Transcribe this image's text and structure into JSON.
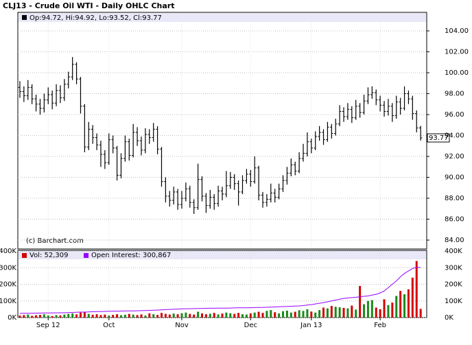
{
  "chart_data": {
    "type": "ohlc",
    "title": "CLJ13 - Crude Oil WTI - Daily OHLC Chart",
    "legend_text": "Op:94.72, Hi:94.92, Lo:93.52, Cl:93.77",
    "watermark": "(c) Barchart.com",
    "color": "#000000",
    "open": [
      98.6,
      98.2,
      97.8,
      98.6,
      97.5,
      97.0,
      96.6,
      97.4,
      97.9,
      97.1,
      98.3,
      97.6,
      98.9,
      99.6,
      100.8,
      99.4,
      96.8,
      92.9,
      94.6,
      93.8,
      93.1,
      92.2,
      91.4,
      93.6,
      92.8,
      90.2,
      91.8,
      93.4,
      92.1,
      94.3,
      93.5,
      92.6,
      94.1,
      93.8,
      94.6,
      92.7,
      89.6,
      88.2,
      87.8,
      88.6,
      87.4,
      88.0,
      88.9,
      87.6,
      87.1,
      89.8,
      88.2,
      87.3,
      88.1,
      87.5,
      88.7,
      88.4,
      89.2,
      90.0,
      89.4,
      88.6,
      89.7,
      90.3,
      89.6,
      90.9,
      88.3,
      87.6,
      87.9,
      88.5,
      88.1,
      88.9,
      89.7,
      90.4,
      91.2,
      90.6,
      91.8,
      92.3,
      93.4,
      92.8,
      93.9,
      94.3,
      93.6,
      94.8,
      94.2,
      95.1,
      96.3,
      95.8,
      96.5,
      95.7,
      96.8,
      96.2,
      97.3,
      97.9,
      98.1,
      97.4,
      96.9,
      96.3,
      96.8,
      95.9,
      97.2,
      96.6,
      98.0,
      97.5,
      96.1,
      94.72
    ],
    "high": [
      99.2,
      98.7,
      99.3,
      98.9,
      97.9,
      97.5,
      98.0,
      98.6,
      98.3,
      98.9,
      98.8,
      99.4,
      100.1,
      101.5,
      101.0,
      99.6,
      97.0,
      95.3,
      95.0,
      94.2,
      93.5,
      92.6,
      94.2,
      94.0,
      93.0,
      92.3,
      94.0,
      93.7,
      95.1,
      94.8,
      93.9,
      94.7,
      94.6,
      95.2,
      94.9,
      92.9,
      90.0,
      88.7,
      89.1,
      88.9,
      88.7,
      89.5,
      89.2,
      87.9,
      91.3,
      90.1,
      88.5,
      88.8,
      88.4,
      89.2,
      89.1,
      90.6,
      90.5,
      90.3,
      89.7,
      90.2,
      90.8,
      90.7,
      92.0,
      91.1,
      88.6,
      88.4,
      89.4,
      88.9,
      89.4,
      90.2,
      91.0,
      91.8,
      91.5,
      92.4,
      93.2,
      94.3,
      93.7,
      94.4,
      94.9,
      94.6,
      95.3,
      95.1,
      95.6,
      96.9,
      96.7,
      97.1,
      96.8,
      97.4,
      97.1,
      97.9,
      98.6,
      98.7,
      98.4,
      97.8,
      97.3,
      97.5,
      97.1,
      97.8,
      97.6,
      98.7,
      98.3,
      97.8,
      96.4,
      94.92
    ],
    "low": [
      97.6,
      97.2,
      97.4,
      97.0,
      96.3,
      96.0,
      96.2,
      97.0,
      96.5,
      96.8,
      97.1,
      97.3,
      98.5,
      99.3,
      98.9,
      96.1,
      92.4,
      92.6,
      93.2,
      92.6,
      91.0,
      90.8,
      91.2,
      92.3,
      89.7,
      89.9,
      91.5,
      91.6,
      91.9,
      93.0,
      92.1,
      92.3,
      93.2,
      93.4,
      92.2,
      89.1,
      87.6,
      87.2,
      87.4,
      86.9,
      87.0,
      87.7,
      87.1,
      86.5,
      86.9,
      87.7,
      86.6,
      87.0,
      86.9,
      87.2,
      87.8,
      88.1,
      88.9,
      88.8,
      87.3,
      88.4,
      89.4,
      89.1,
      89.4,
      87.8,
      87.1,
      87.2,
      87.6,
      87.6,
      87.9,
      88.6,
      89.3,
      90.1,
      90.2,
      90.4,
      91.5,
      92.0,
      92.3,
      92.6,
      93.5,
      93.1,
      93.4,
      93.7,
      94.0,
      94.9,
      95.3,
      95.5,
      95.2,
      95.5,
      95.7,
      96.0,
      97.0,
      97.5,
      96.9,
      96.3,
      95.8,
      95.9,
      95.3,
      95.6,
      96.0,
      96.4,
      97.0,
      95.5,
      94.3,
      93.52
    ],
    "close": [
      98.2,
      97.8,
      98.6,
      97.5,
      97.0,
      96.6,
      97.4,
      97.9,
      97.1,
      98.3,
      97.6,
      98.9,
      99.6,
      100.8,
      99.4,
      96.8,
      92.9,
      94.6,
      93.8,
      93.1,
      92.2,
      91.4,
      93.6,
      92.8,
      90.2,
      91.8,
      93.4,
      92.1,
      94.3,
      93.5,
      92.6,
      94.1,
      93.8,
      94.6,
      92.7,
      89.6,
      88.2,
      87.8,
      88.6,
      87.4,
      88.0,
      88.9,
      87.6,
      87.1,
      89.8,
      88.2,
      87.3,
      88.1,
      87.5,
      88.7,
      88.4,
      89.2,
      90.0,
      89.4,
      88.6,
      89.7,
      90.3,
      89.6,
      90.9,
      88.3,
      87.6,
      87.9,
      88.5,
      88.1,
      88.9,
      89.7,
      90.4,
      91.2,
      90.6,
      91.8,
      92.3,
      93.4,
      92.8,
      93.9,
      94.3,
      93.6,
      94.8,
      94.2,
      95.1,
      96.3,
      95.8,
      96.5,
      95.7,
      96.8,
      96.2,
      97.3,
      97.9,
      98.1,
      97.4,
      96.9,
      96.3,
      96.8,
      95.9,
      97.2,
      96.6,
      98.0,
      97.5,
      96.1,
      94.72,
      93.77
    ],
    "xlim": [
      -0.5,
      100.5
    ],
    "xticks": [
      {
        "value": 7,
        "label": "Sep 12"
      },
      {
        "value": 22,
        "label": "Oct"
      },
      {
        "value": 40,
        "label": "Nov"
      },
      {
        "value": 57,
        "label": "Dec"
      },
      {
        "value": 72,
        "label": "Jan 13"
      },
      {
        "value": 89,
        "label": "Feb"
      }
    ],
    "ylim": [
      83.15,
      104.79
    ],
    "yticks": [
      {
        "value": 84,
        "label": "84.00"
      },
      {
        "value": 86,
        "label": "86.00"
      },
      {
        "value": 88,
        "label": "88.00"
      },
      {
        "value": 90,
        "label": "90.00"
      },
      {
        "value": 92,
        "label": "92.00"
      },
      {
        "value": 94,
        "label": "94.00"
      },
      {
        "value": 96,
        "label": "96.00"
      },
      {
        "value": 98,
        "label": "98.00"
      },
      {
        "value": 100,
        "label": "100.00"
      },
      {
        "value": 102,
        "label": "102.00"
      },
      {
        "value": 104,
        "label": "104.00"
      }
    ],
    "grid": true,
    "volume": {
      "legend": "Vol: 52,309",
      "up_color": "#1a8a1a",
      "down_color": "#d40000",
      "values": [
        12000,
        15000,
        18000,
        10000,
        14000,
        16000,
        20000,
        12000,
        9000,
        15000,
        13000,
        18000,
        22000,
        25000,
        19000,
        30000,
        35000,
        22000,
        17000,
        20000,
        15000,
        18000,
        12000,
        16000,
        20000,
        14000,
        17000,
        22000,
        18000,
        15000,
        19000,
        12000,
        25000,
        20000,
        16000,
        28000,
        22000,
        18000,
        24000,
        20000,
        26000,
        30000,
        22000,
        18000,
        35000,
        25000,
        20000,
        23000,
        28000,
        19000,
        24000,
        30000,
        26000,
        22000,
        28000,
        20000,
        18000,
        25000,
        30000,
        35000,
        28000,
        40000,
        45000,
        32000,
        25000,
        38000,
        42000,
        30000,
        35000,
        44000,
        40000,
        50000,
        36000,
        30000,
        45000,
        60000,
        55000,
        70000,
        65000,
        62000,
        58000,
        55000,
        72000,
        48000,
        190000,
        80000,
        100000,
        105000,
        60000,
        50000,
        110000,
        75000,
        90000,
        130000,
        160000,
        140000,
        170000,
        240000,
        340000,
        52309
      ],
      "ylim": [
        0,
        400000
      ],
      "yticks": [
        {
          "value": 0,
          "label": "0K"
        },
        {
          "value": 100000,
          "label": "100K"
        },
        {
          "value": 200000,
          "label": "200K"
        },
        {
          "value": 300000,
          "label": "300K"
        },
        {
          "value": 400000,
          "label": "400K"
        }
      ]
    },
    "open_interest": {
      "legend": "Open Interest: 300,867",
      "color": "#9900ff",
      "values": [
        25000,
        25500,
        26000,
        26000,
        27000,
        27000,
        27500,
        28000,
        28000,
        28500,
        29000,
        29000,
        30000,
        31000,
        32000,
        33000,
        33000,
        34000,
        35000,
        36000,
        36000,
        37000,
        37500,
        38000,
        38500,
        39000,
        39500,
        40000,
        40500,
        41000,
        41500,
        42000,
        43000,
        44000,
        45000,
        46000,
        48000,
        49000,
        50000,
        51000,
        52000,
        53000,
        53000,
        54000,
        54500,
        55000,
        55500,
        56000,
        56000,
        56500,
        57000,
        57000,
        57500,
        58000,
        58500,
        59000,
        59000,
        59500,
        60000,
        60500,
        61000,
        62000,
        63000,
        64000,
        65000,
        66000,
        67000,
        68000,
        69000,
        70000,
        72000,
        75000,
        78000,
        82000,
        86000,
        90000,
        95000,
        100000,
        105000,
        110000,
        115000,
        118000,
        120000,
        122000,
        125000,
        128000,
        130000,
        135000,
        140000,
        148000,
        160000,
        180000,
        200000,
        220000,
        245000,
        265000,
        280000,
        295000,
        302000,
        300867
      ]
    }
  }
}
